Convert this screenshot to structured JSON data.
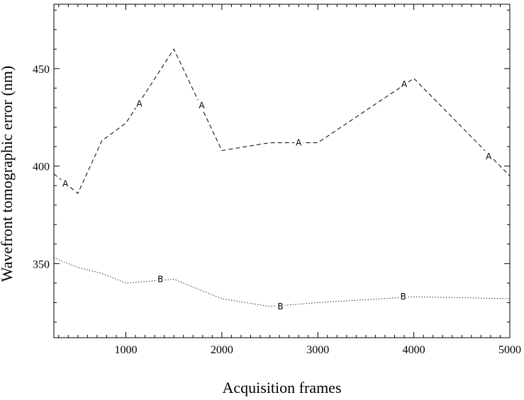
{
  "chart_data": {
    "type": "line",
    "title": "",
    "xlabel": "Acquisition frames",
    "ylabel": "Wavefront tomographic error (nm)",
    "xlim": [
      250,
      5000
    ],
    "ylim": [
      312,
      483
    ],
    "x_ticks": [
      1000,
      2000,
      3000,
      4000,
      5000
    ],
    "x_tick_labels": [
      "1000",
      "2000",
      "3000",
      "4000",
      "5000"
    ],
    "y_ticks": [
      350,
      400,
      450
    ],
    "y_tick_labels": [
      "350",
      "400",
      "450"
    ],
    "grid": false,
    "legend": "none",
    "series": [
      {
        "label": "A",
        "style": "dashed",
        "x": [
          250,
          500,
          750,
          1000,
          1500,
          2000,
          2500,
          3000,
          4000,
          5000
        ],
        "y": [
          396,
          386,
          413,
          422,
          460,
          408,
          412,
          412,
          445,
          395
        ],
        "markers": [
          {
            "x": 370,
            "y": 391
          },
          {
            "x": 1140,
            "y": 432
          },
          {
            "x": 1790,
            "y": 431
          },
          {
            "x": 2800,
            "y": 412
          },
          {
            "x": 3900,
            "y": 442
          },
          {
            "x": 4780,
            "y": 405
          }
        ]
      },
      {
        "label": "B",
        "style": "dotted",
        "x": [
          250,
          500,
          750,
          1000,
          1500,
          2000,
          2500,
          3000,
          4000,
          5000
        ],
        "y": [
          353,
          348,
          345,
          340,
          342,
          332,
          328,
          330,
          333,
          332
        ],
        "markers": [
          {
            "x": 1360,
            "y": 342
          },
          {
            "x": 2610,
            "y": 328
          },
          {
            "x": 3890,
            "y": 333
          }
        ]
      }
    ]
  }
}
